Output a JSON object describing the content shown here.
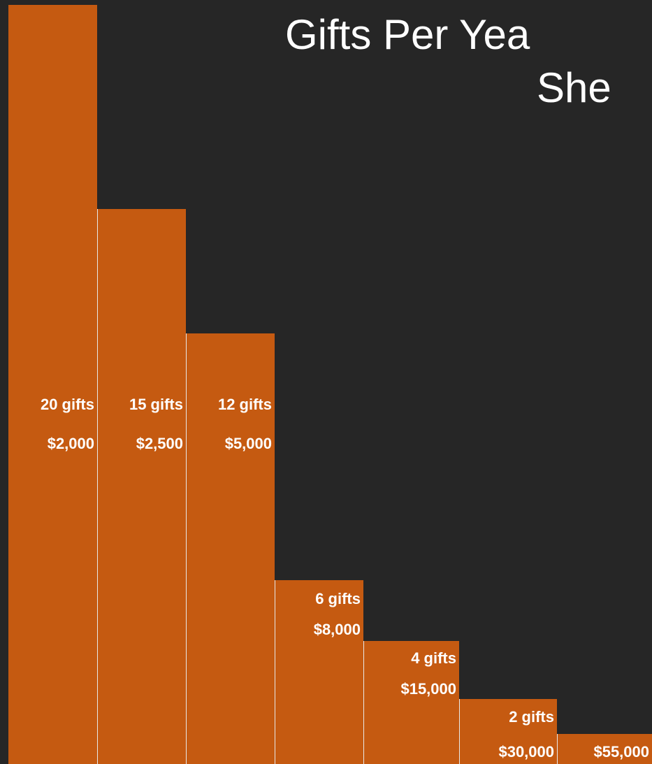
{
  "title_lines": [
    "Gifts Per Yea",
    "She"
  ],
  "tiers": [
    {
      "gifts": "20 gifts",
      "amount": "$2,000"
    },
    {
      "gifts": "15 gifts",
      "amount": "$2,500"
    },
    {
      "gifts": "12 gifts",
      "amount": "$5,000"
    },
    {
      "gifts": "6 gifts",
      "amount": "$8,000"
    },
    {
      "gifts": "4 gifts",
      "amount": "$15,000"
    },
    {
      "gifts": "2 gifts",
      "amount": "$30,000"
    },
    {
      "amount": "$55,000"
    }
  ]
}
